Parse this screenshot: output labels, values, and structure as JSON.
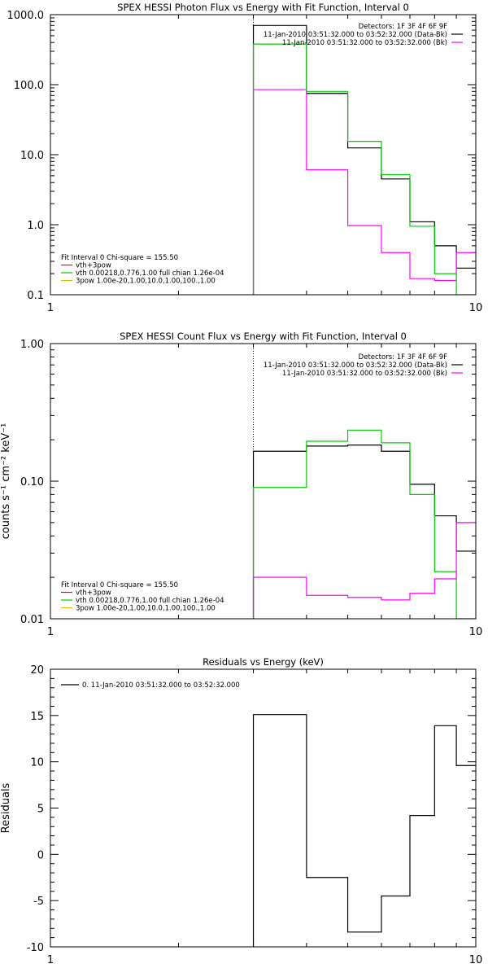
{
  "chart_data": [
    {
      "type": "line",
      "title": "SPEX HESSI Photon Flux vs Energy with Fit Function, Interval 0",
      "ylabel": "",
      "xlabel": "",
      "x_scale": "log",
      "y_scale": "log",
      "xlim": [
        1,
        10
      ],
      "ylim": [
        0.1,
        1000
      ],
      "x_ticks": [
        {
          "v": 1,
          "label": "1"
        },
        {
          "v": 10,
          "label": "10"
        }
      ],
      "y_ticks": [
        {
          "v": 0.1,
          "label": "0.1"
        },
        {
          "v": 1,
          "label": "1.0"
        },
        {
          "v": 10,
          "label": "10.0"
        },
        {
          "v": 100,
          "label": "100.0"
        },
        {
          "v": 1000,
          "label": "1000.0"
        }
      ],
      "fit_start": 3.0,
      "edges": [
        3.0,
        4.0,
        5.0,
        6.0,
        7.0,
        8.0,
        9.0,
        10.0
      ],
      "series": [
        {
          "color": "#000000",
          "values": [
            700,
            75,
            12.5,
            4.5,
            1.1,
            0.5,
            0.24
          ]
        },
        {
          "color": "#ff00ff",
          "values": [
            85,
            6.1,
            0.97,
            0.4,
            0.17,
            0.16,
            0.4
          ]
        },
        {
          "color": "#00cc00",
          "values": [
            380,
            80,
            15.5,
            5.2,
            0.95,
            0.2,
            0.0
          ]
        }
      ],
      "annotations": [
        "Detectors: 1F 3F 4F 6F 9F",
        "11-Jan-2010 03:51:32.000 to 03:52:32.000 (Data-Bk)",
        "11-Jan-2010 03:51:32.000 to 03:52:32.000 (Bk)"
      ],
      "legend": {
        "header": "Fit Interval 0    Chi-square = 155.50",
        "items": [
          {
            "label": "vth+3pow",
            "color": "#ff0000"
          },
          {
            "label": "vth 0.00218,0.776,1.00  full chian 1.26e-04",
            "color": "#00cc00"
          },
          {
            "label": "3pow 1.00e-20,1.00,10.0,1.00,100.,1.00",
            "color": "#d4c000"
          }
        ]
      }
    },
    {
      "type": "line",
      "title": "SPEX HESSI Count Flux vs Energy with Fit Function, Interval 0",
      "ylabel": "counts s⁻¹ cm⁻² keV⁻¹",
      "xlabel": "",
      "x_scale": "log",
      "y_scale": "log",
      "xlim": [
        1,
        10
      ],
      "ylim": [
        0.01,
        1
      ],
      "x_ticks": [
        {
          "v": 1,
          "label": "1"
        },
        {
          "v": 10,
          "label": "10"
        }
      ],
      "y_ticks": [
        {
          "v": 0.01,
          "label": "0.01"
        },
        {
          "v": 0.1,
          "label": "0.10"
        },
        {
          "v": 1,
          "label": "1.00"
        }
      ],
      "fit_start": 3.0,
      "edges": [
        3.0,
        4.0,
        5.0,
        6.0,
        7.0,
        8.0,
        9.0,
        10.0
      ],
      "series": [
        {
          "color": "#000000",
          "values": [
            0.165,
            0.18,
            0.183,
            0.165,
            0.095,
            0.056,
            0.031
          ]
        },
        {
          "color": "#00cc00",
          "values": [
            0.09,
            0.195,
            0.235,
            0.19,
            0.08,
            0.022,
            0.0
          ]
        },
        {
          "color": "#ff00ff",
          "values": [
            0.02,
            0.0148,
            0.0143,
            0.0137,
            0.0153,
            0.0195,
            0.05
          ]
        }
      ],
      "annotations": [
        "Detectors: 1F 3F 4F 6F 9F",
        "11-Jan-2010 03:51:32.000 to 03:52:32.000 (Data-Bk)",
        "11-Jan-2010 03:51:32.000 to 03:52:32.000 (Bk)"
      ],
      "legend": {
        "header": "Fit Interval 0    Chi-square = 155.50",
        "items": [
          {
            "label": "vth+3pow",
            "color": "#ff0000"
          },
          {
            "label": "vth 0.00218,0.776,1.00  full chian 1.26e-04",
            "color": "#00cc00"
          },
          {
            "label": "3pow 1.00e-20,1.00,10.0,1.00,100.,1.00",
            "color": "#d4c000"
          }
        ]
      }
    },
    {
      "type": "line",
      "title": "Residuals vs Energy (keV)",
      "ylabel": "Residuals",
      "xlabel": "",
      "x_scale": "log",
      "y_scale": "linear",
      "xlim": [
        1,
        10
      ],
      "ylim": [
        -10,
        20
      ],
      "x_ticks": [
        {
          "v": 1,
          "label": "1"
        },
        {
          "v": 10,
          "label": "10"
        }
      ],
      "y_ticks": [
        {
          "v": -10,
          "label": "-10"
        },
        {
          "v": -5,
          "label": "-5"
        },
        {
          "v": 0,
          "label": "0"
        },
        {
          "v": 5,
          "label": "5"
        },
        {
          "v": 10,
          "label": "10"
        },
        {
          "v": 15,
          "label": "15"
        },
        {
          "v": 20,
          "label": "20"
        }
      ],
      "edges": [
        3.0,
        4.0,
        5.0,
        6.0,
        7.0,
        8.0,
        9.0,
        10.0
      ],
      "series": [
        {
          "color": "#000000",
          "values": [
            15.1,
            -2.5,
            -8.4,
            -4.5,
            4.2,
            13.9,
            9.6
          ]
        }
      ],
      "legend": {
        "items": [
          {
            "label": "0. 11-Jan-2010 03:51:32.000 to 03:52:32.000",
            "color": "#000000"
          }
        ]
      }
    }
  ]
}
